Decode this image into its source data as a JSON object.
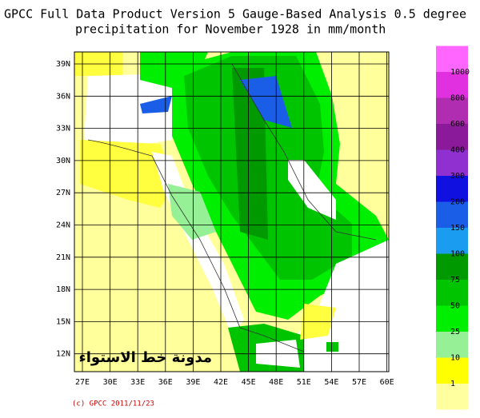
{
  "title": {
    "line1": "GPCC Full Data Product Version 5 Gauge-Based Analysis 0.5 degree",
    "line2": "precipitation for November  1928 in mm/month"
  },
  "map": {
    "lat_labels": [
      "39N",
      "36N",
      "33N",
      "30N",
      "27N",
      "24N",
      "21N",
      "18N",
      "15N",
      "12N"
    ],
    "lon_labels": [
      "27E",
      "30E",
      "33E",
      "36E",
      "39E",
      "42E",
      "45E",
      "48E",
      "51E",
      "54E",
      "57E",
      "60E"
    ],
    "watermark": "مدونة خط الاستواء"
  },
  "legend": {
    "labels": [
      "1000",
      "800",
      "600",
      "400",
      "300",
      "200",
      "150",
      "100",
      "75",
      "50",
      "25",
      "10",
      "1"
    ],
    "colors": [
      "#ff66ff",
      "#e030e0",
      "#b02cb0",
      "#8a1a9a",
      "#9030d0",
      "#1010e0",
      "#1a5ee8",
      "#1a9cf0",
      "#009a00",
      "#00c400",
      "#00ee00",
      "#96f096",
      "#ffff00",
      "#ffffa0"
    ]
  },
  "credit": "(c) GPCC 2011/11/23"
}
